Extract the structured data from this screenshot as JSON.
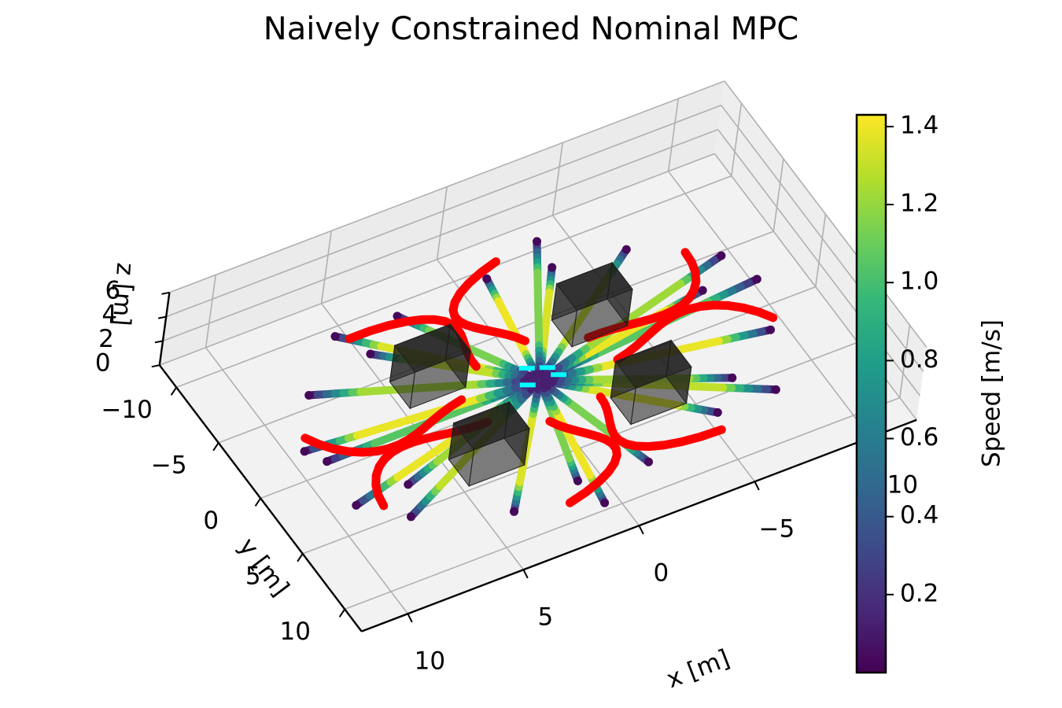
{
  "title": "Naively Constrained Nominal MPC",
  "chart_data": {
    "type": "scatter",
    "projection": "3d",
    "title": "Naively Constrained Nominal MPC",
    "xlabel": "x [m]",
    "ylabel": "y [m]",
    "zlabel": "z [m]",
    "xlim": [
      -12,
      12
    ],
    "ylim": [
      -12,
      12
    ],
    "zlim": [
      0,
      6
    ],
    "x_ticks": [
      -10,
      -5,
      0,
      5,
      10
    ],
    "x_tick_labels": [
      "−10",
      "−5",
      "0",
      "5",
      "10"
    ],
    "y_ticks": [
      -10,
      -5,
      0,
      5,
      10
    ],
    "y_tick_labels": [
      "−10",
      "−5",
      "0",
      "5",
      "10"
    ],
    "z_ticks": [
      0,
      2,
      4,
      6
    ],
    "z_tick_labels": [
      "0",
      "2",
      "4",
      "6"
    ],
    "grid": true,
    "colorbar": {
      "label": "Speed [m/s]",
      "colormap": "viridis",
      "range": [
        0.0,
        1.43
      ],
      "ticks": [
        0.2,
        0.4,
        0.6,
        0.8,
        1.0,
        1.2,
        1.4
      ],
      "tick_labels": [
        "0.2",
        "0.4",
        "0.6",
        "0.8",
        "1.0",
        "1.2",
        "1.4"
      ]
    },
    "series": [
      {
        "kind": "speed_colored_trajectories",
        "count": 24,
        "start_radius": 10,
        "end_radius": 0.3,
        "height": 1
      },
      {
        "kind": "red_constraint_violations",
        "color": "#ff0000"
      },
      {
        "kind": "goal_markers",
        "color": "#00ffff"
      },
      {
        "kind": "obstacles",
        "count": 4,
        "color": "#1a1a1a"
      }
    ]
  }
}
